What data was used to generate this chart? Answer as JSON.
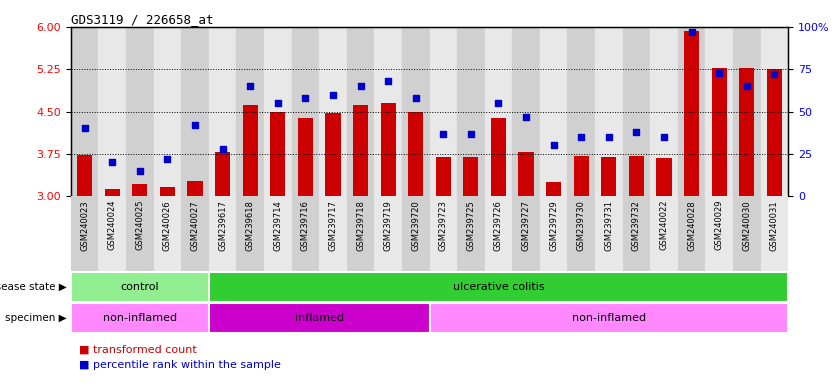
{
  "title": "GDS3119 / 226658_at",
  "samples": [
    "GSM240023",
    "GSM240024",
    "GSM240025",
    "GSM240026",
    "GSM240027",
    "GSM239617",
    "GSM239618",
    "GSM239714",
    "GSM239716",
    "GSM239717",
    "GSM239718",
    "GSM239719",
    "GSM239720",
    "GSM239723",
    "GSM239725",
    "GSM239726",
    "GSM239727",
    "GSM239729",
    "GSM239730",
    "GSM239731",
    "GSM239732",
    "GSM240022",
    "GSM240028",
    "GSM240029",
    "GSM240030",
    "GSM240031"
  ],
  "bar_values": [
    3.73,
    3.13,
    3.22,
    3.17,
    3.27,
    3.78,
    4.62,
    4.5,
    4.38,
    4.47,
    4.62,
    4.65,
    4.5,
    3.7,
    3.7,
    4.38,
    3.78,
    3.25,
    3.72,
    3.7,
    3.72,
    3.68,
    5.92,
    5.28,
    5.28,
    5.25
  ],
  "dot_values": [
    40,
    20,
    15,
    22,
    42,
    28,
    65,
    55,
    58,
    60,
    65,
    68,
    58,
    37,
    37,
    55,
    47,
    30,
    35,
    35,
    38,
    35,
    97,
    73,
    65,
    72
  ],
  "bar_color": "#CC0000",
  "dot_color": "#0000CC",
  "ylim_left": [
    3.0,
    6.0
  ],
  "ylim_right": [
    0,
    100
  ],
  "yticks_left": [
    3.0,
    3.75,
    4.5,
    5.25,
    6.0
  ],
  "yticks_right": [
    0,
    25,
    50,
    75,
    100
  ],
  "hlines": [
    3.75,
    4.5,
    5.25
  ],
  "disease_state_groups": [
    {
      "label": "control",
      "start": 0,
      "end": 5,
      "color": "#90EE90"
    },
    {
      "label": "ulcerative colitis",
      "start": 5,
      "end": 26,
      "color": "#32CD32"
    }
  ],
  "specimen_groups": [
    {
      "label": "non-inflamed",
      "start": 0,
      "end": 5,
      "color": "#FF88FF"
    },
    {
      "label": "inflamed",
      "start": 5,
      "end": 13,
      "color": "#CC00CC"
    },
    {
      "label": "non-inflamed",
      "start": 13,
      "end": 26,
      "color": "#FF88FF"
    }
  ],
  "bar_color_legend": "#CC0000",
  "dot_color_legend": "#0000CC",
  "ylabel_left": "",
  "ylabel_right": "",
  "background_color": "#FFFFFF",
  "tick_bg_even": "#D0D0D0",
  "tick_bg_odd": "#E8E8E8"
}
